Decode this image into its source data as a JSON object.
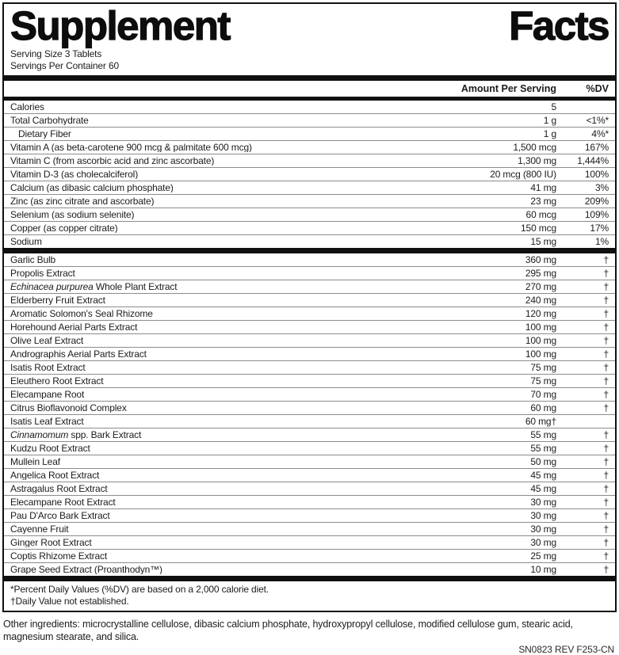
{
  "colors": {
    "ink": "#111111",
    "background": "#ffffff"
  },
  "title": {
    "word_left": "Supplement",
    "word_right": "Facts"
  },
  "serving_info": {
    "serving_size": "Serving Size 3 Tablets",
    "servings_per_container": "Servings Per Container 60"
  },
  "columns": {
    "amount_header": "Amount Per Serving",
    "dv_header": "%DV"
  },
  "nutrient_rows": [
    {
      "label": "Calories",
      "amount": "5",
      "dv": ""
    },
    {
      "label": "Total Carbohydrate",
      "amount": "1 g",
      "dv": "<1%*"
    },
    {
      "label": "Dietary Fiber",
      "amount": "1 g",
      "dv": "4%*",
      "indent": true
    },
    {
      "label": "Vitamin A (as beta-carotene 900 mcg & palmitate 600 mcg)",
      "amount": "1,500 mcg",
      "dv": "167%"
    },
    {
      "label": "Vitamin C (from ascorbic acid and zinc ascorbate)",
      "amount": "1,300 mg",
      "dv": "1,444%"
    },
    {
      "label": "Vitamin D-3 (as cholecalciferol)",
      "amount": "20 mcg (800 IU)",
      "dv": "100%"
    },
    {
      "label": "Calcium (as dibasic calcium phosphate)",
      "amount": "41 mg",
      "dv": "3%"
    },
    {
      "label": "Zinc (as zinc citrate and ascorbate)",
      "amount": "23 mg",
      "dv": "209%"
    },
    {
      "label": "Selenium (as sodium selenite)",
      "amount": "60 mcg",
      "dv": "109%"
    },
    {
      "label": "Copper (as copper citrate)",
      "amount": "150 mcg",
      "dv": "17%"
    },
    {
      "label": "Sodium",
      "amount": "15 mg",
      "dv": "1%"
    }
  ],
  "herb_rows": [
    {
      "label": "Garlic Bulb",
      "amount": "360 mg",
      "dv": "†"
    },
    {
      "label": "Propolis Extract",
      "amount": "295 mg",
      "dv": "†"
    },
    {
      "label_italic": "Echinacea purpurea",
      "label": " Whole Plant Extract",
      "amount": "270 mg",
      "dv": "†"
    },
    {
      "label": "Elderberry Fruit Extract",
      "amount": "240 mg",
      "dv": "†"
    },
    {
      "label": "Aromatic Solomon's Seal Rhizome",
      "amount": "120 mg",
      "dv": "†"
    },
    {
      "label": "Horehound Aerial Parts Extract",
      "amount": "100 mg",
      "dv": "†"
    },
    {
      "label": "Olive Leaf Extract",
      "amount": "100 mg",
      "dv": "†"
    },
    {
      "label": "Andrographis Aerial Parts Extract",
      "amount": "100 mg",
      "dv": "†"
    },
    {
      "label": "Isatis Root Extract",
      "amount": "75 mg",
      "dv": "†"
    },
    {
      "label": "Eleuthero Root Extract",
      "amount": "75 mg",
      "dv": "†"
    },
    {
      "label": "Elecampane Root",
      "amount": "70 mg",
      "dv": "†"
    },
    {
      "label": "Citrus Bioflavonoid Complex",
      "amount": "60 mg",
      "dv": "†"
    },
    {
      "label": "Isatis Leaf Extract",
      "amount": "60 mg†",
      "dv": ""
    },
    {
      "label_italic": "Cinnamomum",
      "label": " spp. Bark Extract",
      "amount": "55 mg",
      "dv": "†"
    },
    {
      "label": "Kudzu Root Extract",
      "amount": "55 mg",
      "dv": "†"
    },
    {
      "label": "Mullein Leaf",
      "amount": "50 mg",
      "dv": "†"
    },
    {
      "label": "Angelica Root Extract",
      "amount": "45 mg",
      "dv": "†"
    },
    {
      "label": "Astragalus Root Extract",
      "amount": "45 mg",
      "dv": "†"
    },
    {
      "label": "Elecampane Root Extract",
      "amount": "30 mg",
      "dv": "†"
    },
    {
      "label": "Pau D'Arco Bark Extract",
      "amount": "30 mg",
      "dv": "†"
    },
    {
      "label": "Cayenne Fruit",
      "amount": "30 mg",
      "dv": "†"
    },
    {
      "label": "Ginger Root Extract",
      "amount": "30 mg",
      "dv": "†"
    },
    {
      "label": "Coptis Rhizome Extract",
      "amount": "25 mg",
      "dv": "†"
    },
    {
      "label": "Grape Seed Extract (Proanthodyn™)",
      "amount": "10 mg",
      "dv": "†"
    }
  ],
  "footnotes": {
    "dv_note": "*Percent Daily Values (%DV) are based on a 2,000 calorie diet.",
    "dagger_note": "†Daily Value not established."
  },
  "other_ingredients": "Other ingredients: microcrystalline cellulose, dibasic calcium phosphate, hydroxypropyl cellulose, modified cellulose gum, stearic acid, magnesium stearate, and silica.",
  "footer_code": "SN0823 REV F253-CN"
}
